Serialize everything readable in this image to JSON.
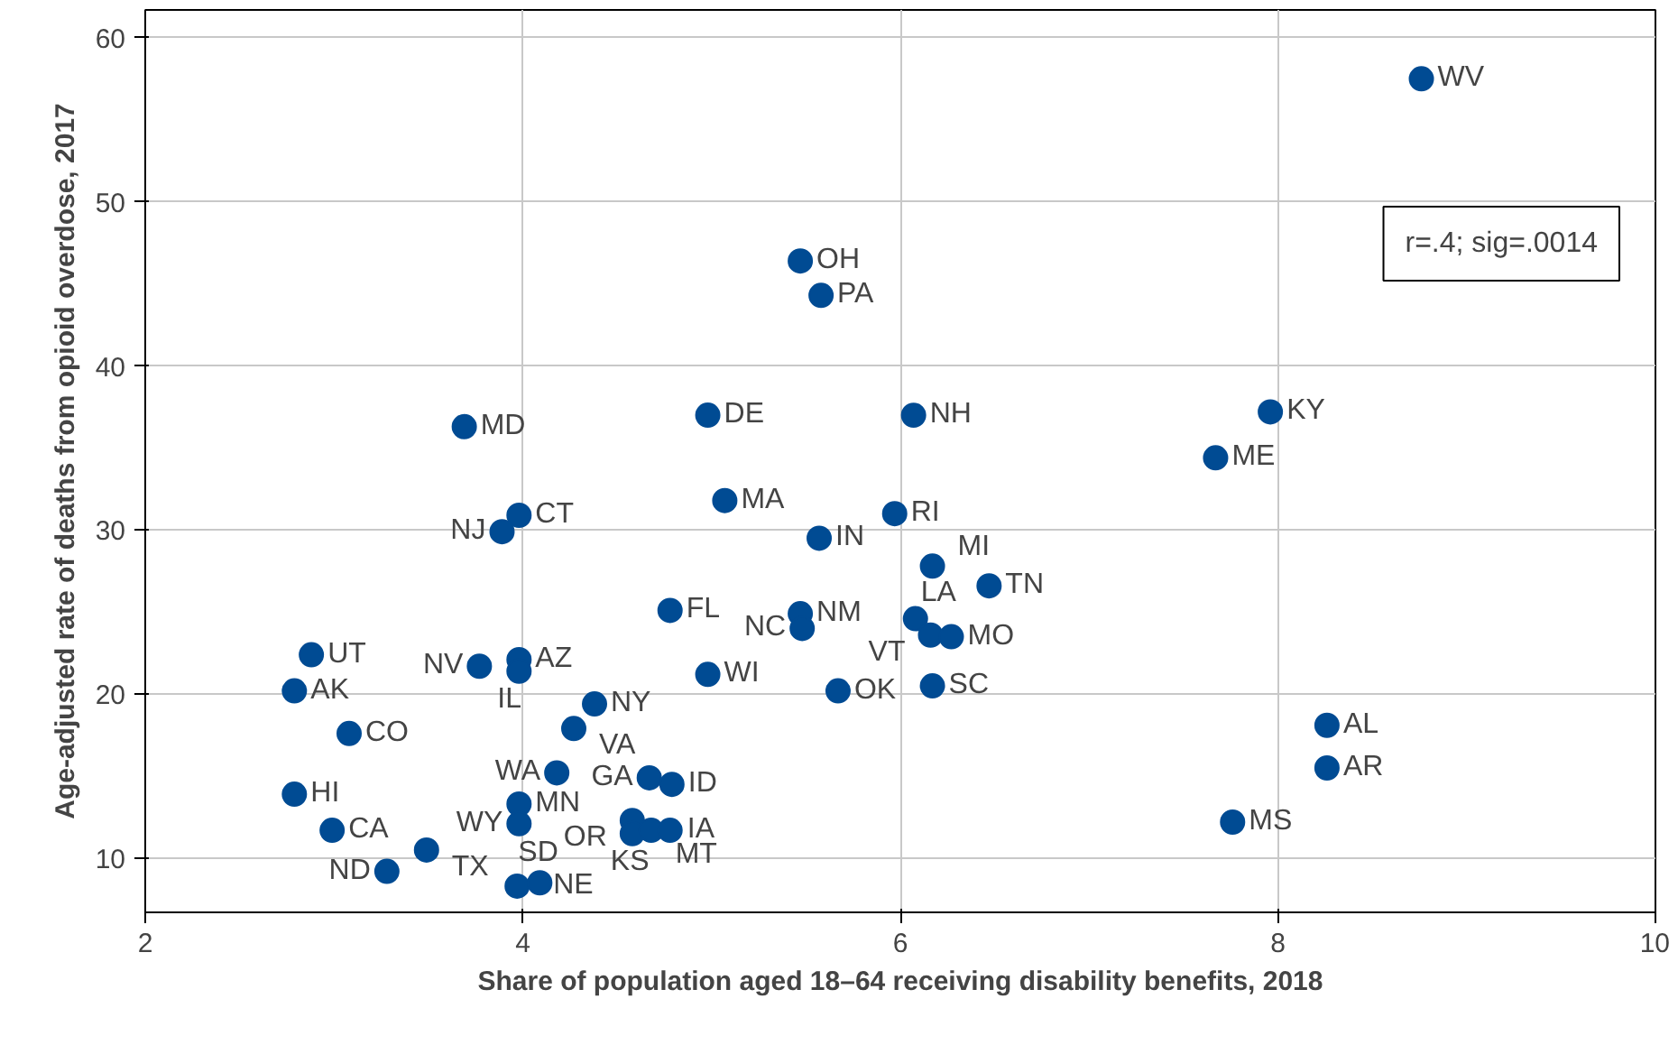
{
  "chart_data": {
    "type": "scatter",
    "xlabel": "Share of population aged 18–64 receiving disability benefits, 2018",
    "ylabel": "Age-adjusted rate of deaths from opioid overdose, 2017",
    "xlim": [
      2,
      10
    ],
    "ylim": [
      6.7,
      61.7
    ],
    "xticks": [
      2,
      4,
      6,
      8,
      10
    ],
    "yticks": [
      10,
      20,
      30,
      40,
      50,
      60
    ],
    "grid": true,
    "marker": "circle",
    "series": [
      {
        "color": "#004b93",
        "x": [
          8.76,
          5.47,
          5.58,
          6.07,
          4.98,
          7.96,
          7.67,
          3.69,
          5.07,
          3.98,
          3.89,
          5.97,
          5.57,
          6.17,
          6.47,
          4.78,
          5.47,
          5.48,
          6.08,
          6.16,
          6.27,
          2.88,
          3.98,
          3.77,
          3.98,
          4.98,
          6.17,
          5.67,
          2.79,
          4.38,
          4.27,
          3.08,
          8.26,
          8.26,
          4.18,
          4.67,
          4.79,
          2.79,
          3.98,
          3.98,
          7.76,
          4.58,
          4.58,
          4.68,
          4.78,
          2.99,
          3.49,
          3.28,
          3.97,
          4.09
        ],
        "values": [
          57.5,
          46.4,
          44.3,
          37.0,
          37.0,
          37.2,
          34.4,
          36.3,
          31.8,
          30.9,
          29.9,
          31.0,
          29.5,
          27.8,
          26.6,
          25.1,
          24.9,
          24.0,
          24.6,
          23.6,
          23.5,
          22.4,
          22.1,
          21.7,
          21.4,
          21.2,
          20.5,
          20.2,
          20.2,
          19.4,
          17.9,
          17.6,
          18.1,
          15.5,
          15.2,
          14.9,
          14.5,
          13.9,
          13.3,
          12.1,
          12.2,
          12.3,
          11.5,
          11.7,
          11.7,
          11.7,
          10.5,
          9.2,
          8.3,
          8.5
        ]
      }
    ],
    "annotations": [
      {
        "text": "WV",
        "x": 8.76,
        "y": 57.5
      },
      {
        "text": "OH",
        "x": 5.47,
        "y": 46.4
      },
      {
        "text": "PA",
        "x": 5.58,
        "y": 44.3
      },
      {
        "text": "NH",
        "x": 6.07,
        "y": 37.0
      },
      {
        "text": "DE",
        "x": 4.98,
        "y": 37.0
      },
      {
        "text": "KY",
        "x": 7.96,
        "y": 37.2
      },
      {
        "text": "ME",
        "x": 7.67,
        "y": 34.4
      },
      {
        "text": "MD",
        "x": 3.69,
        "y": 36.3
      },
      {
        "text": "MA",
        "x": 5.07,
        "y": 31.8
      },
      {
        "text": "CT",
        "x": 3.98,
        "y": 30.9
      },
      {
        "text": "NJ",
        "x": 3.89,
        "y": 29.9
      },
      {
        "text": "RI",
        "x": 5.97,
        "y": 31.0
      },
      {
        "text": "IN",
        "x": 5.57,
        "y": 29.5
      },
      {
        "text": "MI",
        "x": 6.17,
        "y": 27.8
      },
      {
        "text": "TN",
        "x": 6.47,
        "y": 26.6
      },
      {
        "text": "FL",
        "x": 4.78,
        "y": 25.1
      },
      {
        "text": "NM",
        "x": 5.47,
        "y": 24.9
      },
      {
        "text": "NC",
        "x": 5.48,
        "y": 24.0
      },
      {
        "text": "LA",
        "x": 6.08,
        "y": 24.6
      },
      {
        "text": "VT",
        "x": 6.16,
        "y": 23.6
      },
      {
        "text": "MO",
        "x": 6.27,
        "y": 23.5
      },
      {
        "text": "UT",
        "x": 2.88,
        "y": 22.4
      },
      {
        "text": "AZ",
        "x": 3.98,
        "y": 22.1
      },
      {
        "text": "NV",
        "x": 3.77,
        "y": 21.7
      },
      {
        "text": "IL",
        "x": 3.98,
        "y": 21.4
      },
      {
        "text": "WI",
        "x": 4.98,
        "y": 21.2
      },
      {
        "text": "SC",
        "x": 6.17,
        "y": 20.5
      },
      {
        "text": "OK",
        "x": 5.67,
        "y": 20.2
      },
      {
        "text": "AK",
        "x": 2.79,
        "y": 20.2
      },
      {
        "text": "NY",
        "x": 4.38,
        "y": 19.4
      },
      {
        "text": "VA",
        "x": 4.27,
        "y": 17.9
      },
      {
        "text": "CO",
        "x": 3.08,
        "y": 17.6
      },
      {
        "text": "AL",
        "x": 8.26,
        "y": 18.1
      },
      {
        "text": "AR",
        "x": 8.26,
        "y": 15.5
      },
      {
        "text": "WA",
        "x": 4.18,
        "y": 15.2
      },
      {
        "text": "GA",
        "x": 4.67,
        "y": 14.9
      },
      {
        "text": "ID",
        "x": 4.79,
        "y": 14.5
      },
      {
        "text": "HI",
        "x": 2.79,
        "y": 13.9
      },
      {
        "text": "MN",
        "x": 3.98,
        "y": 13.3
      },
      {
        "text": "WY",
        "x": 3.98,
        "y": 12.1
      },
      {
        "text": "MS",
        "x": 7.76,
        "y": 12.2
      },
      {
        "text": "OR",
        "x": 4.58,
        "y": 12.3
      },
      {
        "text": "KS",
        "x": 4.58,
        "y": 11.5
      },
      {
        "text": "IA",
        "x": 4.68,
        "y": 11.7
      },
      {
        "text": "MT",
        "x": 4.78,
        "y": 11.7
      },
      {
        "text": "CA",
        "x": 2.99,
        "y": 11.7
      },
      {
        "text": "TX",
        "x": 3.49,
        "y": 10.5
      },
      {
        "text": "ND",
        "x": 3.28,
        "y": 9.2
      },
      {
        "text": "NE",
        "x": 3.97,
        "y": 8.3
      },
      {
        "text": "SD",
        "x": 4.09,
        "y": 8.5
      },
      "r=.4; sig=.0014"
    ]
  }
}
